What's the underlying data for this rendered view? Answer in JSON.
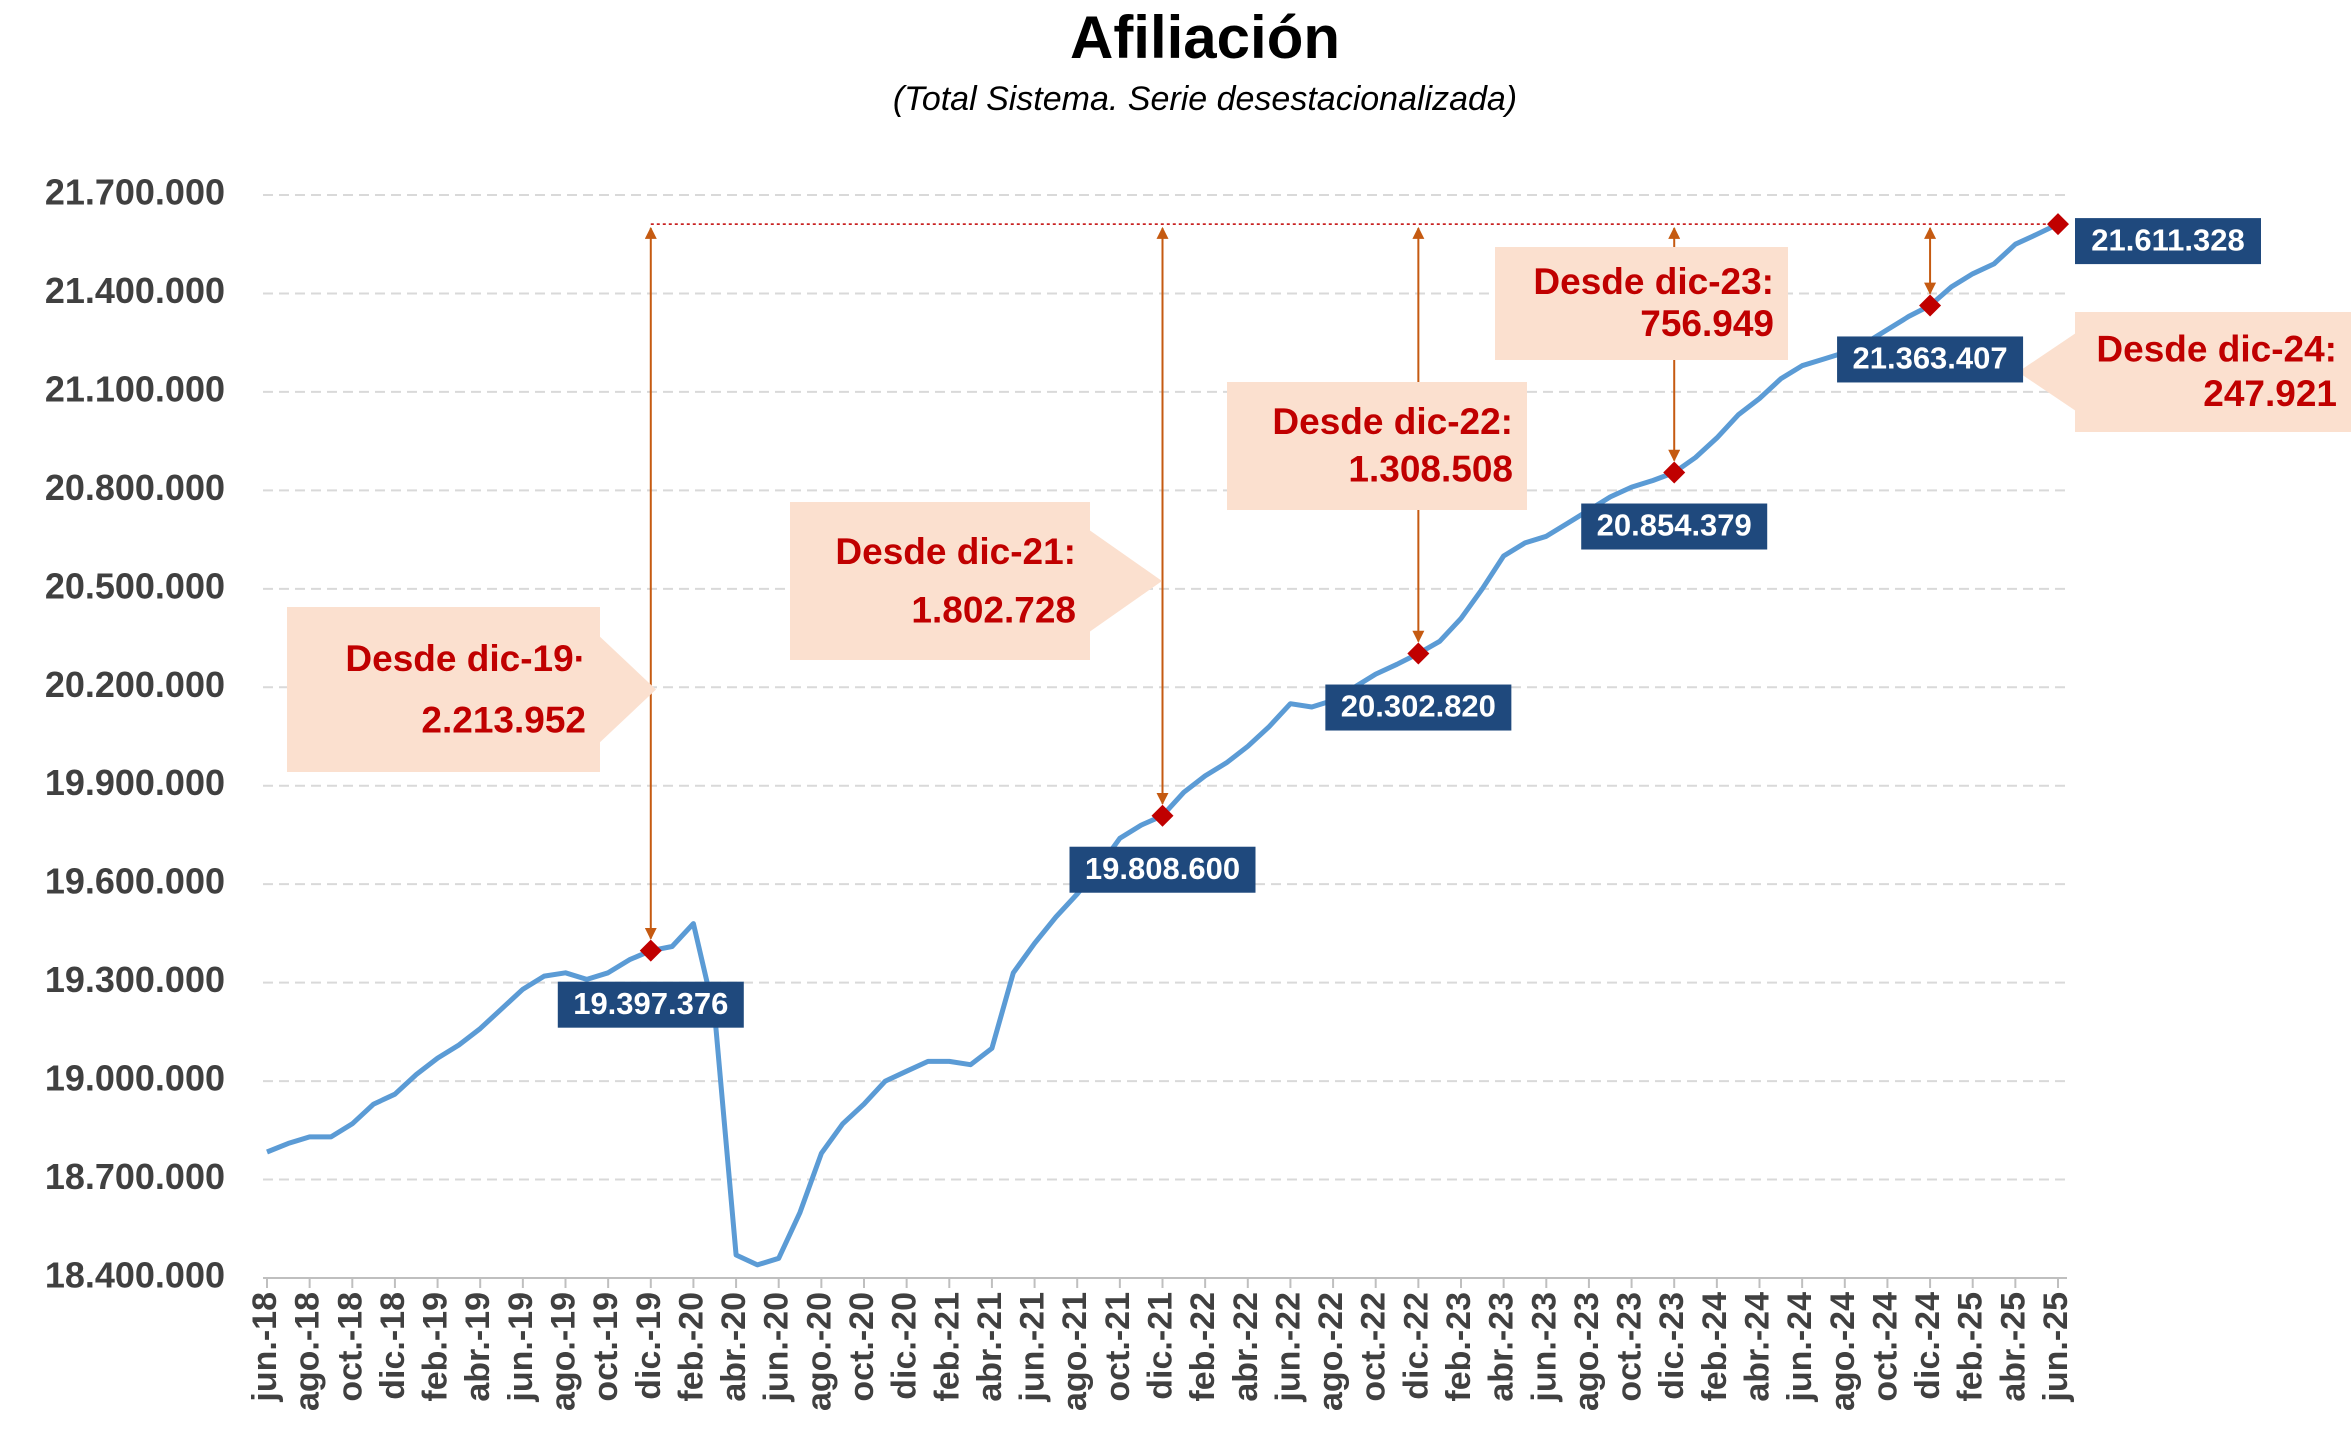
{
  "chart_data": {
    "type": "line",
    "title": "Afiliación",
    "subtitle": "(Total Sistema. Serie desestacionalizada)",
    "categories": [
      "jun.-18",
      null,
      "ago.-18",
      null,
      "oct.-18",
      null,
      "dic.-18",
      null,
      "feb.-19",
      null,
      "abr.-19",
      null,
      "jun.-19",
      null,
      "ago.-19",
      null,
      "oct.-19",
      null,
      "dic.-19",
      null,
      "feb.-20",
      null,
      "abr.-20",
      null,
      "jun.-20",
      null,
      "ago.-20",
      null,
      "oct.-20",
      null,
      "dic.-20",
      null,
      "feb.-21",
      null,
      "abr.-21",
      null,
      "jun.-21",
      null,
      "ago.-21",
      null,
      "oct.-21",
      null,
      "dic.-21",
      null,
      "feb.-22",
      null,
      "abr.-22",
      null,
      "jun.-22",
      null,
      "ago.-22",
      null,
      "oct.-22",
      null,
      "dic.-22",
      null,
      "feb.-23",
      null,
      "abr.-23",
      null,
      "jun.-23",
      null,
      "ago.-23",
      null,
      "oct.-23",
      null,
      "dic.-23",
      null,
      "feb.-24",
      null,
      "abr.-24",
      null,
      "jun.-24",
      null,
      "ago.-24",
      null,
      "oct.-24",
      null,
      "dic.-24",
      null,
      "feb.-25",
      null,
      "abr.-25",
      null,
      "jun.-25"
    ],
    "series": [
      {
        "name": "Afiliación",
        "color": "#5b9bd5",
        "values": [
          18784000,
          18810000,
          18830000,
          18830000,
          18870000,
          18930000,
          18960000,
          19020000,
          19070000,
          19110000,
          19160000,
          19220000,
          19280000,
          19320000,
          19330000,
          19310000,
          19330000,
          19370000,
          19397376,
          19410000,
          19480000,
          19200000,
          18470000,
          18440000,
          18460000,
          18600000,
          18780000,
          18870000,
          18930000,
          19000000,
          19030000,
          19060000,
          19060000,
          19050000,
          19100000,
          19330000,
          19420000,
          19500000,
          19570000,
          19650000,
          19740000,
          19780000,
          19808600,
          19880000,
          19930000,
          19970000,
          20020000,
          20080000,
          20150000,
          20140000,
          20160000,
          20200000,
          20240000,
          20270000,
          20302820,
          20340000,
          20410000,
          20500000,
          20600000,
          20640000,
          20660000,
          20700000,
          20740000,
          20780000,
          20810000,
          20830000,
          20854379,
          20900000,
          20960000,
          21030000,
          21080000,
          21140000,
          21180000,
          21200000,
          21220000,
          21250000,
          21290000,
          21330000,
          21363407,
          21420000,
          21460000,
          21490000,
          21550000,
          21580000,
          21611328
        ],
        "value_labels": [
          null,
          null,
          null,
          null,
          null,
          null,
          null,
          null,
          null,
          null,
          null,
          null,
          null,
          null,
          null,
          null,
          null,
          null,
          "19.397.376",
          null,
          null,
          null,
          null,
          null,
          null,
          null,
          null,
          null,
          null,
          null,
          null,
          null,
          null,
          null,
          null,
          null,
          null,
          null,
          null,
          null,
          null,
          null,
          "19.808.600",
          null,
          null,
          null,
          null,
          null,
          null,
          null,
          null,
          null,
          null,
          null,
          "20.302.820",
          null,
          null,
          null,
          null,
          null,
          null,
          null,
          null,
          null,
          null,
          null,
          "20.854.379",
          null,
          null,
          null,
          null,
          null,
          null,
          null,
          null,
          null,
          null,
          null,
          "21.363.407",
          null,
          null,
          null,
          null,
          null,
          "21.611.328"
        ]
      }
    ],
    "marker_color": "#c00000",
    "label_color": "#1f497d",
    "callouts": [
      {
        "category": "dic.-19",
        "text": "Desde dic-19·",
        "value": 2213952,
        "label": "2.213.952"
      },
      {
        "category": "dic.-21",
        "text": "Desde dic-21:",
        "value": 1802728,
        "label": "1.802.728"
      },
      {
        "category": "dic.-22",
        "text": "Desde dic-22:",
        "value": 1308508,
        "label": "1.308.508"
      },
      {
        "category": "dic.-23",
        "text": "Desde dic-23:",
        "value": 756949,
        "label": "756.949"
      },
      {
        "category": "dic.-24",
        "text": "Desde dic-24:",
        "value": 247921,
        "label": "247.921"
      }
    ],
    "ylim": [
      18400000,
      21700000
    ],
    "yticks": [
      {
        "value": 18400000,
        "label": "18.400.000"
      },
      {
        "value": 18700000,
        "label": "18.700.000"
      },
      {
        "value": 19000000,
        "label": "19.000.000"
      },
      {
        "value": 19300000,
        "label": "19.300.000"
      },
      {
        "value": 19600000,
        "label": "19.600.000"
      },
      {
        "value": 19900000,
        "label": "19.900.000"
      },
      {
        "value": 20200000,
        "label": "20.200.000"
      },
      {
        "value": 20500000,
        "label": "20.500.000"
      },
      {
        "value": 20800000,
        "label": "20.800.000"
      },
      {
        "value": 21100000,
        "label": "21.100.000"
      },
      {
        "value": 21400000,
        "label": "21.400.000"
      },
      {
        "value": 21700000,
        "label": "21.700.000"
      }
    ],
    "grid": true
  }
}
